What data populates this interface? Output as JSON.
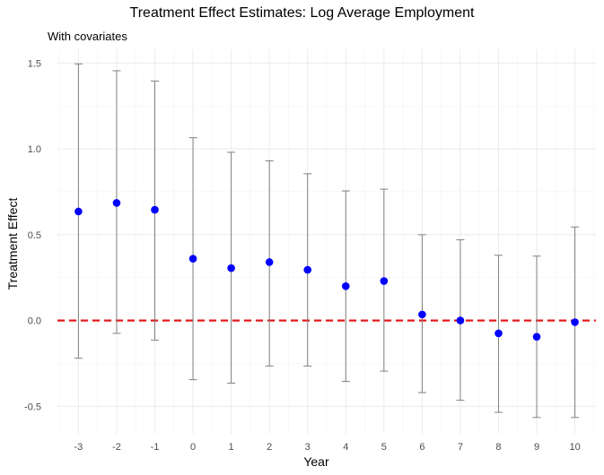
{
  "chart_data": {
    "type": "scatter",
    "title": "Treatment Effect Estimates: Log Average Employment",
    "subtitle": "With covariates",
    "xlabel": "Year",
    "ylabel": "Treatment Effect",
    "x": [
      -3,
      -2,
      -1,
      0,
      1,
      2,
      3,
      4,
      5,
      6,
      7,
      8,
      9,
      10
    ],
    "series": [
      {
        "estimate": [
          0.635,
          0.685,
          0.645,
          0.36,
          0.305,
          0.34,
          0.295,
          0.2,
          0.23,
          0.035,
          0.0,
          -0.075,
          -0.095,
          -0.01
        ],
        "lower": [
          -0.22,
          -0.075,
          -0.115,
          -0.345,
          -0.365,
          -0.265,
          -0.265,
          -0.355,
          -0.295,
          -0.42,
          -0.465,
          -0.535,
          -0.565,
          -0.565
        ],
        "upper": [
          1.495,
          1.455,
          1.395,
          1.065,
          0.98,
          0.93,
          0.855,
          0.755,
          0.765,
          0.5,
          0.47,
          0.38,
          0.375,
          0.545
        ],
        "point_color": "#0000ff",
        "errorbar_color": "#808080"
      }
    ],
    "reference_line": {
      "y": 0,
      "color": "#e41a1c",
      "style": "dashed"
    },
    "xlim": [
      -3.55,
      10.55
    ],
    "ylim": [
      -0.66,
      1.58
    ],
    "x_ticks": [
      "-3",
      "-2",
      "-1",
      "0",
      "1",
      "2",
      "3",
      "4",
      "5",
      "6",
      "7",
      "8",
      "9",
      "10"
    ],
    "y_ticks": [
      "-0.5",
      "0.0",
      "0.5",
      "1.0",
      "1.5"
    ],
    "grid": true
  }
}
